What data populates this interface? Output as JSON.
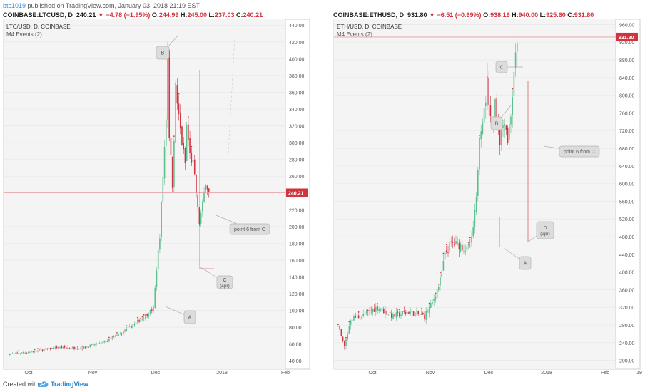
{
  "header": {
    "author": "btc1019",
    "published_text": "published on TradingView.com, January 03, 2018 21:19 EST",
    "left_quote": {
      "symbol": "COINBASE:LTCUSD, D",
      "last": "240.21",
      "arrow": "▼",
      "change": "−4.78 (−1.95%)",
      "o_label": "O:",
      "o": "244.99",
      "h_label": "H:",
      "h": "245.00",
      "l_label": "L:",
      "l": "237.03",
      "c_label": "C:",
      "c": "240.21"
    },
    "right_quote": {
      "symbol": "COINBASE:ETHUSD, D",
      "last": "931.80",
      "arrow": "▼",
      "change": "−6.51 (−0.69%)",
      "o_label": "O:",
      "o": "938.16",
      "h_label": "H:",
      "h": "940.00",
      "l_label": "L:",
      "l": "925.60",
      "c_label": "C:",
      "c": "931.80"
    }
  },
  "footer": {
    "created_with": "Created with",
    "brand": "TradingView"
  },
  "colors": {
    "up": "#5dbf8d",
    "down": "#d0343f",
    "marker": "#d0343f",
    "price_line": "#e89aa0",
    "grid": "#e6e6e6",
    "panel_bg": "#f4f4f4"
  },
  "chart_data": [
    {
      "type": "candlestick",
      "title": "LTC/USD, D, COINBASE",
      "subtitle": "M4 Events (2)",
      "y_ticks": [
        "40.00",
        "60.00",
        "80.00",
        "100.00",
        "120.00",
        "140.00",
        "160.00",
        "180.00",
        "200.00",
        "220.00",
        "240.00",
        "260.00",
        "280.00",
        "300.00",
        "320.00",
        "340.00",
        "360.00",
        "380.00",
        "400.00",
        "420.00",
        "440.00"
      ],
      "ylim": [
        30,
        447
      ],
      "x_ticks": [
        "Oct",
        "Nov",
        "Dec",
        "2018",
        "Feb"
      ],
      "last_price": "240.21",
      "last_value": 240.21,
      "annotations": [
        {
          "text": "A",
          "price": 97
        },
        {
          "text": "B",
          "price": 419
        },
        {
          "text": "C",
          "sub": "(4pr)",
          "price": 143
        },
        {
          "text": "point 6 from C",
          "price": 204
        }
      ],
      "anchors": [
        {
          "day": 0,
          "price": 48
        },
        {
          "day": 15,
          "price": 51
        },
        {
          "day": 30,
          "price": 56
        },
        {
          "day": 45,
          "price": 55
        },
        {
          "day": 60,
          "price": 62
        },
        {
          "day": 70,
          "price": 72
        },
        {
          "day": 80,
          "price": 85
        },
        {
          "day": 88,
          "price": 97
        },
        {
          "day": 91,
          "price": 102
        },
        {
          "day": 93,
          "price": 150
        },
        {
          "day": 95,
          "price": 190
        },
        {
          "day": 97,
          "price": 260
        },
        {
          "day": 99,
          "price": 330
        },
        {
          "day": 100,
          "price": 415
        },
        {
          "day": 101,
          "price": 310
        },
        {
          "day": 103,
          "price": 250
        },
        {
          "day": 105,
          "price": 365
        },
        {
          "day": 107,
          "price": 330
        },
        {
          "day": 109,
          "price": 300
        },
        {
          "day": 111,
          "price": 275
        },
        {
          "day": 112,
          "price": 320
        },
        {
          "day": 114,
          "price": 285
        },
        {
          "day": 116,
          "price": 275
        },
        {
          "day": 118,
          "price": 240
        },
        {
          "day": 119,
          "price": 220
        },
        {
          "day": 120,
          "price": 205
        },
        {
          "day": 122,
          "price": 225
        },
        {
          "day": 124,
          "price": 255
        },
        {
          "day": 126,
          "price": 240
        }
      ]
    },
    {
      "type": "candlestick",
      "title": "ETH/USD, D, COINBASE",
      "subtitle": "M4 Events (2)",
      "y_ticks": [
        "200.00",
        "240.00",
        "280.00",
        "320.00",
        "360.00",
        "400.00",
        "440.00",
        "480.00",
        "520.00",
        "560.00",
        "600.00",
        "640.00",
        "680.00",
        "720.00",
        "760.00",
        "800.00",
        "840.00",
        "880.00",
        "920.00",
        "960.00"
      ],
      "ylim": [
        180,
        972
      ],
      "x_ticks": [
        "Oct",
        "Nov",
        "Dec",
        "2018",
        "Feb",
        "19"
      ],
      "last_price": "931.80",
      "last_value": 931.8,
      "annotations": [
        {
          "text": "A",
          "price": 445
        },
        {
          "text": "B",
          "price": 782
        },
        {
          "text": "C",
          "price": 880
        },
        {
          "text": "D",
          "sub": "(2pr)",
          "price": 460
        },
        {
          "text": "point 6 from C",
          "price": 690
        }
      ],
      "anchors": [
        {
          "day": 0,
          "price": 275
        },
        {
          "day": 4,
          "price": 230
        },
        {
          "day": 8,
          "price": 295
        },
        {
          "day": 15,
          "price": 300
        },
        {
          "day": 25,
          "price": 320
        },
        {
          "day": 35,
          "price": 300
        },
        {
          "day": 45,
          "price": 310
        },
        {
          "day": 55,
          "price": 300
        },
        {
          "day": 60,
          "price": 330
        },
        {
          "day": 65,
          "price": 380
        },
        {
          "day": 68,
          "price": 440
        },
        {
          "day": 72,
          "price": 465
        },
        {
          "day": 78,
          "price": 460
        },
        {
          "day": 82,
          "price": 450
        },
        {
          "day": 85,
          "price": 470
        },
        {
          "day": 88,
          "price": 560
        },
        {
          "day": 90,
          "price": 720
        },
        {
          "day": 93,
          "price": 760
        },
        {
          "day": 95,
          "price": 830
        },
        {
          "day": 98,
          "price": 720
        },
        {
          "day": 100,
          "price": 790
        },
        {
          "day": 103,
          "price": 700
        },
        {
          "day": 106,
          "price": 750
        },
        {
          "day": 108,
          "price": 700
        },
        {
          "day": 110,
          "price": 760
        },
        {
          "day": 112,
          "price": 840
        },
        {
          "day": 114,
          "price": 930
        }
      ]
    }
  ]
}
